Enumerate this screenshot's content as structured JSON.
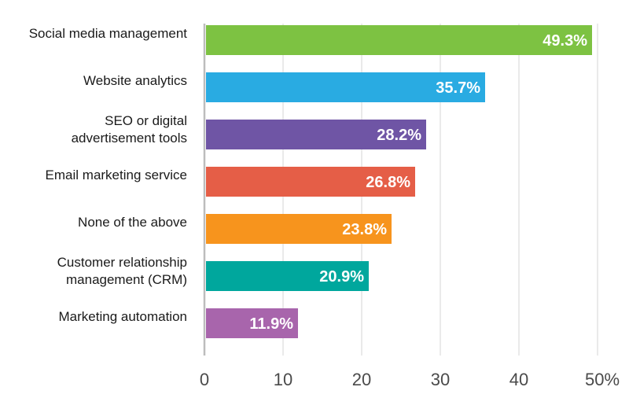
{
  "chart_data": {
    "type": "bar",
    "orientation": "horizontal",
    "categories": [
      [
        "Social media management"
      ],
      [
        "Website analytics"
      ],
      [
        "SEO or digital",
        "advertisement tools"
      ],
      [
        "Email marketing service"
      ],
      [
        "None of the above"
      ],
      [
        "Customer relationship",
        "management (CRM)"
      ],
      [
        "Marketing automation"
      ]
    ],
    "values": [
      49.3,
      35.7,
      28.2,
      26.8,
      23.8,
      20.9,
      11.9
    ],
    "value_labels": [
      "49.3%",
      "35.7%",
      "28.2%",
      "26.8%",
      "23.8%",
      "20.9%",
      "11.9%"
    ],
    "colors": [
      "#7dc242",
      "#29abe2",
      "#6f55a5",
      "#e55e47",
      "#f7941d",
      "#00a79d",
      "#a865ac"
    ],
    "xlim": [
      0,
      50
    ],
    "x_ticks": [
      0,
      10,
      20,
      30,
      40,
      50
    ],
    "x_tick_labels": [
      "0",
      "10",
      "20",
      "30",
      "40",
      "50%"
    ],
    "grid": true,
    "legend": "none"
  }
}
